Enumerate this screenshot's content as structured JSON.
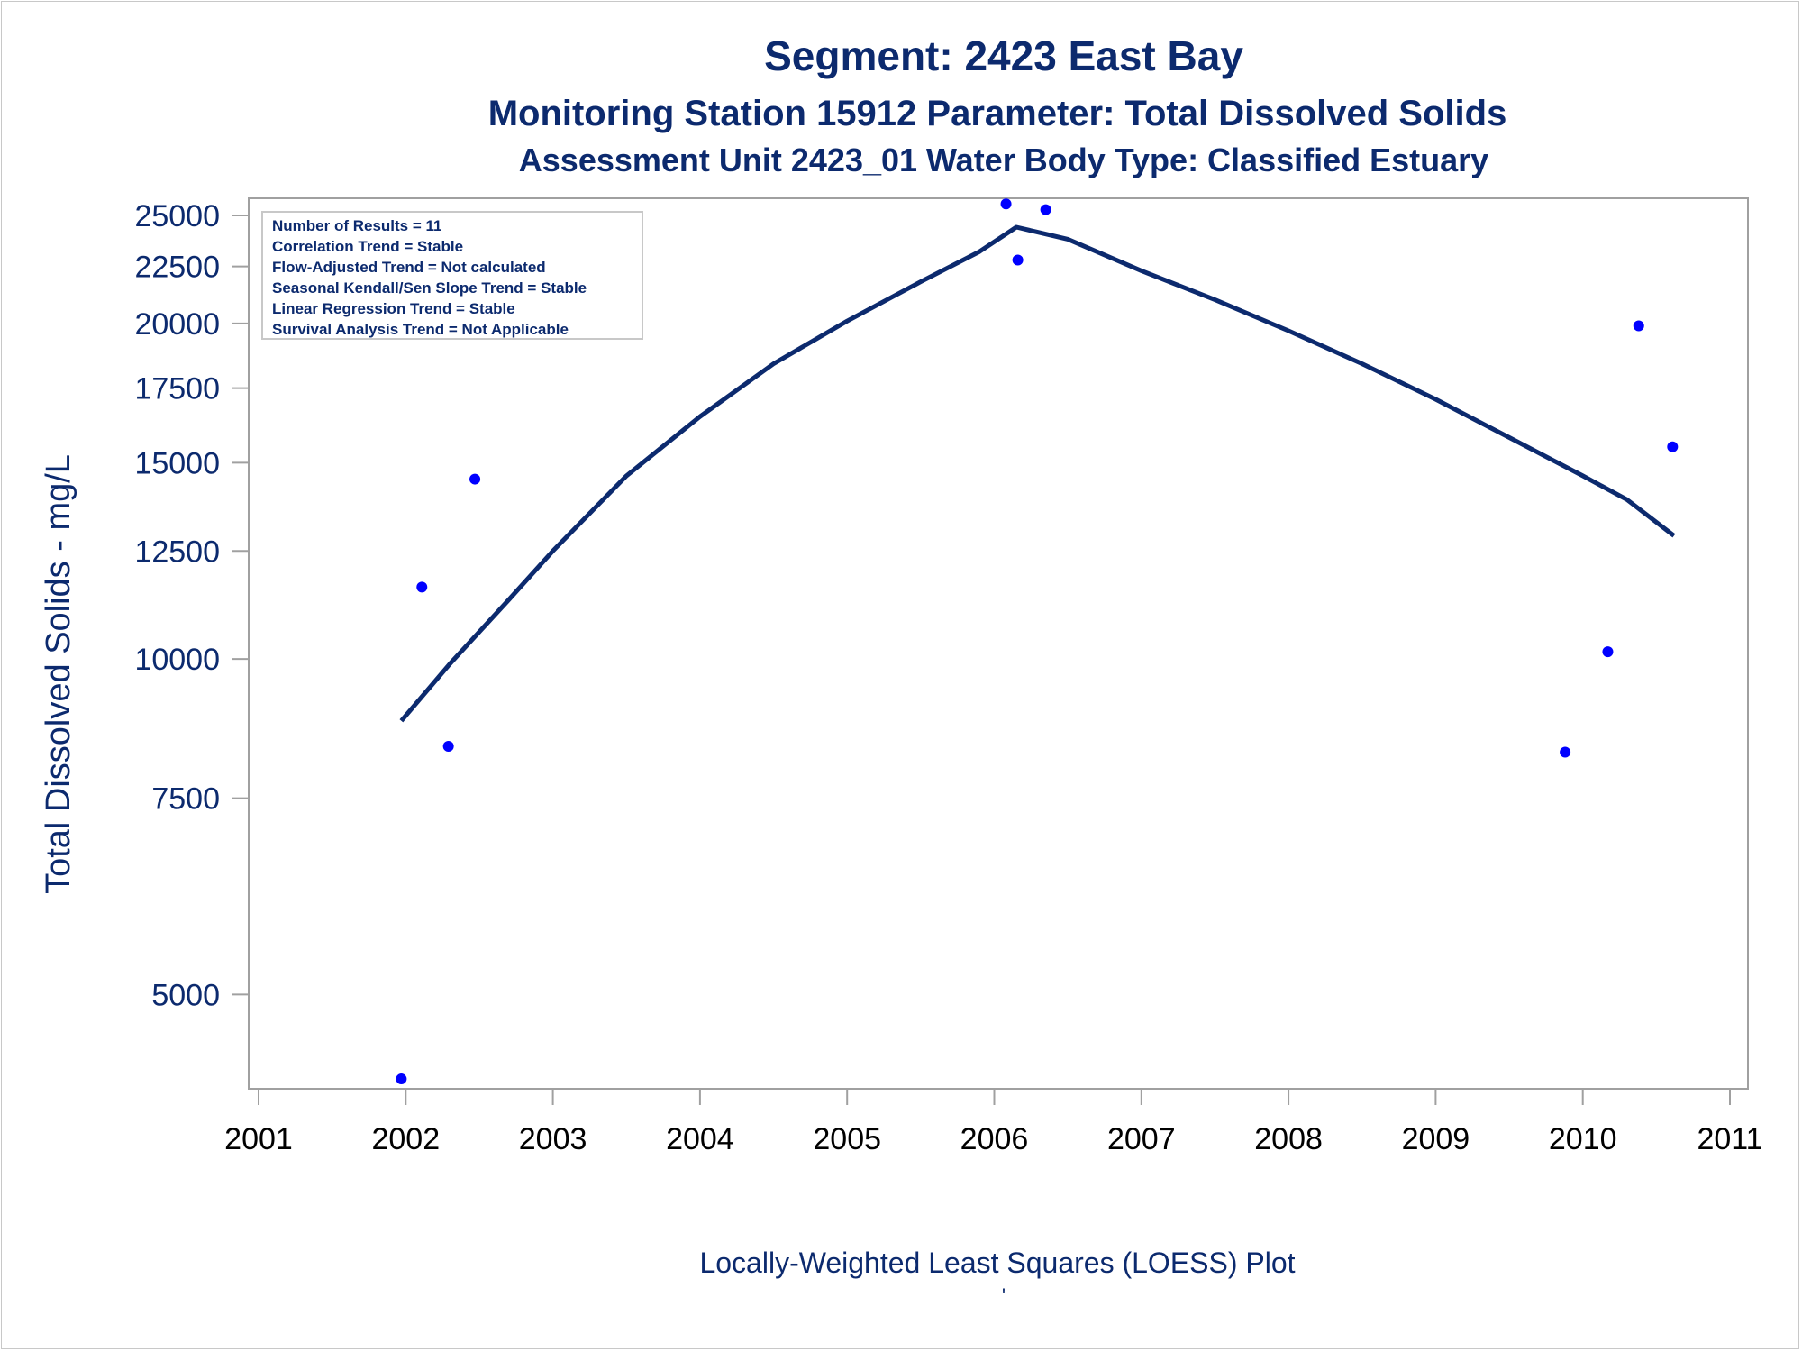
{
  "chart_data": {
    "type": "scatter",
    "title": "Segment: 2423  East Bay",
    "subtitle": "Monitoring Station 15912 Parameter: Total Dissolved Solids",
    "subtitle2": "Assessment Unit 2423_01   Water Body Type: Classified Estuary",
    "xlabel": "Locally-Weighted Least Squares (LOESS) Plot",
    "ylabel": "Total Dissolved Solids - mg/L",
    "yscale": "log",
    "xlim": [
      2001,
      2011
    ],
    "ylim": [
      4100,
      25900
    ],
    "x_ticks": [
      "2001",
      "2002",
      "2003",
      "2004",
      "2005",
      "2006",
      "2007",
      "2008",
      "2009",
      "2010",
      "2011"
    ],
    "y_ticks": [
      "5000",
      "7500",
      "10000",
      "12500",
      "15000",
      "17500",
      "20000",
      "22500",
      "25000"
    ],
    "stats_box": [
      "Number of Results = 11",
      "Correlation Trend = Stable",
      "Flow-Adjusted Trend = Not calculated",
      "Seasonal Kendall/Sen Slope Trend = Stable",
      "Linear Regression Trend = Stable",
      "Survival Analysis Trend = Not Applicable"
    ],
    "footnote": "'",
    "grid": false,
    "colors": {
      "points": "#0000ff",
      "loess": "#0c2a6e",
      "text": "#0c2a6e",
      "axis": "#a0a0a0"
    },
    "series": [
      {
        "type": "scatter",
        "x": [
          2001.97,
          2002.11,
          2002.29,
          2002.47,
          2006.08,
          2006.16,
          2006.35,
          2009.88,
          2010.17,
          2010.38,
          2010.61
        ],
        "y": [
          4200,
          11600,
          8350,
          14500,
          25600,
          22800,
          25300,
          8250,
          10150,
          19900,
          15500
        ]
      },
      {
        "type": "line",
        "x": [
          2001.97,
          2002.3,
          2002.7,
          2003.0,
          2003.5,
          2004.0,
          2004.5,
          2005.0,
          2005.5,
          2005.9,
          2006.15,
          2006.5,
          2007.0,
          2007.5,
          2008.0,
          2008.5,
          2009.0,
          2009.5,
          2010.0,
          2010.3,
          2010.62
        ],
        "y": [
          8800,
          9900,
          11300,
          12500,
          14600,
          16500,
          18400,
          20100,
          21800,
          23200,
          24400,
          23800,
          22300,
          21000,
          19700,
          18400,
          17100,
          15800,
          14600,
          13900,
          12900
        ]
      }
    ]
  }
}
